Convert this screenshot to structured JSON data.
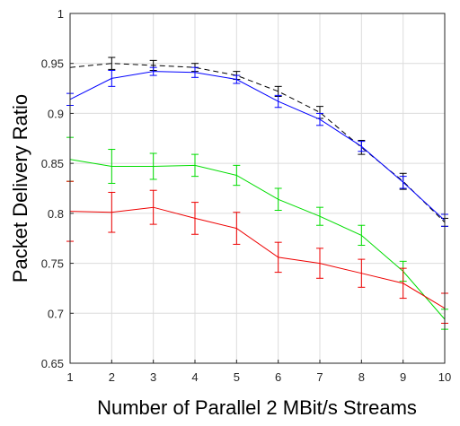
{
  "chart_data": {
    "type": "line",
    "xlabel": "Number of Parallel 2 MBit/s Streams",
    "ylabel": "Packet Delivery Ratio",
    "x": [
      1,
      2,
      3,
      4,
      5,
      6,
      7,
      8,
      9,
      10
    ],
    "xlim": [
      1,
      10
    ],
    "ylim": [
      0.65,
      1.0
    ],
    "xticks": [
      "1",
      "2",
      "3",
      "4",
      "5",
      "6",
      "7",
      "8",
      "9",
      "10"
    ],
    "yticks": [
      "0.65",
      "0.7",
      "0.75",
      "0.8",
      "0.85",
      "0.9",
      "0.95",
      "1"
    ],
    "grid": true,
    "series": [
      {
        "color": "#000000",
        "dashed": true,
        "values": [
          0.946,
          0.95,
          0.948,
          0.946,
          0.938,
          0.922,
          0.901,
          0.866,
          0.832,
          0.791
        ],
        "errors": [
          0.0,
          0.006,
          0.005,
          0.004,
          0.004,
          0.005,
          0.006,
          0.007,
          0.008,
          0.004
        ]
      },
      {
        "color": "#0000ff",
        "dashed": false,
        "values": [
          0.914,
          0.935,
          0.942,
          0.941,
          0.934,
          0.912,
          0.894,
          0.867,
          0.831,
          0.793
        ],
        "errors": [
          0.006,
          0.008,
          0.004,
          0.005,
          0.004,
          0.006,
          0.006,
          0.005,
          0.006,
          0.006
        ]
      },
      {
        "color": "#00dd00",
        "dashed": false,
        "values": [
          0.854,
          0.847,
          0.847,
          0.848,
          0.838,
          0.814,
          0.797,
          0.778,
          0.742,
          0.694
        ],
        "errors": [
          0.022,
          0.017,
          0.013,
          0.011,
          0.01,
          0.011,
          0.009,
          0.01,
          0.01,
          0.01
        ]
      },
      {
        "color": "#ee0000",
        "dashed": false,
        "values": [
          0.802,
          0.801,
          0.806,
          0.795,
          0.785,
          0.756,
          0.75,
          0.74,
          0.73,
          0.705
        ],
        "errors": [
          0.03,
          0.02,
          0.017,
          0.016,
          0.016,
          0.015,
          0.015,
          0.014,
          0.015,
          0.015
        ]
      }
    ]
  }
}
